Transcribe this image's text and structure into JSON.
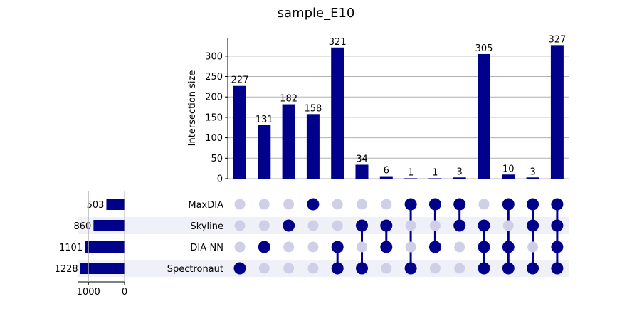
{
  "chart_data": {
    "type": "upset",
    "title": "sample_E10",
    "ylabel": "Intersection size",
    "ylim": [
      0,
      345
    ],
    "yticks": [
      0,
      50,
      100,
      150,
      200,
      250,
      300
    ],
    "grid": true,
    "colors": {
      "bar": "#00008b",
      "dot_active": "#00008b",
      "dot_inactive": "#cfcfe8",
      "stripe": "#f0f0f8"
    },
    "sets": [
      {
        "name": "MaxDIA",
        "size": 503
      },
      {
        "name": "Skyline",
        "size": 860
      },
      {
        "name": "DIA-NN",
        "size": 1101
      },
      {
        "name": "Spectronaut",
        "size": 1228
      }
    ],
    "set_size_ticks": [
      1000,
      0
    ],
    "set_size_max": 1300,
    "intersections": [
      {
        "members": [
          "Spectronaut"
        ],
        "value": 227
      },
      {
        "members": [
          "DIA-NN"
        ],
        "value": 131
      },
      {
        "members": [
          "Skyline"
        ],
        "value": 182
      },
      {
        "members": [
          "MaxDIA"
        ],
        "value": 158
      },
      {
        "members": [
          "DIA-NN",
          "Spectronaut"
        ],
        "value": 321
      },
      {
        "members": [
          "Skyline",
          "Spectronaut"
        ],
        "value": 34
      },
      {
        "members": [
          "Skyline",
          "DIA-NN"
        ],
        "value": 6
      },
      {
        "members": [
          "MaxDIA",
          "Spectronaut"
        ],
        "value": 1
      },
      {
        "members": [
          "MaxDIA",
          "DIA-NN"
        ],
        "value": 1
      },
      {
        "members": [
          "MaxDIA",
          "Skyline"
        ],
        "value": 3
      },
      {
        "members": [
          "Skyline",
          "DIA-NN",
          "Spectronaut"
        ],
        "value": 305
      },
      {
        "members": [
          "MaxDIA",
          "DIA-NN",
          "Spectronaut"
        ],
        "value": 10
      },
      {
        "members": [
          "MaxDIA",
          "Skyline",
          "Spectronaut"
        ],
        "value": 3
      },
      {
        "members": [
          "MaxDIA",
          "Skyline",
          "DIA-NN",
          "Spectronaut"
        ],
        "value": 327
      }
    ]
  }
}
